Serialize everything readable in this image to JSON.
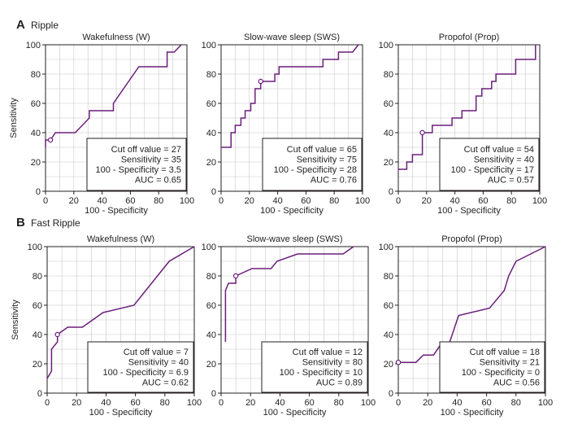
{
  "sections": [
    {
      "letter": "A",
      "title": "Ripple"
    },
    {
      "letter": "B",
      "title": "Fast Ripple"
    }
  ],
  "colors": {
    "curve": "#6b1f7c",
    "grid": "#c8c8c8",
    "axis": "#231f20",
    "text": "#231f20"
  },
  "chart_data": [
    {
      "type": "line",
      "section": "A",
      "title": "Wakefulness (W)",
      "xlabel": "100 - Specificity",
      "ylabel": "Sensitivity",
      "xlim": [
        0,
        100
      ],
      "ylim": [
        0,
        100
      ],
      "xticks": [
        0,
        20,
        40,
        60,
        80,
        100
      ],
      "yticks": [
        0,
        20,
        40,
        60,
        80,
        100
      ],
      "grid": true,
      "x": [
        0,
        0,
        3.5,
        3.5,
        7,
        7,
        21,
        21,
        31,
        31,
        48,
        48,
        66,
        66,
        86,
        86,
        91,
        91,
        96
      ],
      "y": [
        30,
        35,
        35,
        35,
        40,
        40,
        40,
        40,
        50,
        55,
        55,
        60,
        85,
        85,
        85,
        95,
        95,
        95,
        100
      ],
      "cutoff_point": {
        "x": 3.5,
        "y": 35
      },
      "annotation": [
        "Cut off value = 27",
        "Sensitivity = 35",
        "100 - Specificity = 3.5",
        "AUC = 0.65"
      ]
    },
    {
      "type": "line",
      "section": "A",
      "title": "Slow-wave sleep (SWS)",
      "xlabel": "100 - Specificity",
      "ylabel": "",
      "xlim": [
        0,
        100
      ],
      "ylim": [
        0,
        100
      ],
      "xticks": [
        0,
        20,
        40,
        60,
        80,
        100
      ],
      "yticks": [
        0,
        20,
        40,
        60,
        80,
        100
      ],
      "grid": true,
      "x": [
        0,
        7,
        7,
        10,
        10,
        14,
        14,
        17,
        17,
        21,
        21,
        24,
        24,
        28,
        28,
        38,
        38,
        41,
        41,
        45,
        45,
        72,
        72,
        83,
        83,
        93,
        93,
        97
      ],
      "y": [
        30,
        30,
        40,
        40,
        45,
        45,
        50,
        50,
        55,
        55,
        60,
        60,
        70,
        70,
        75,
        75,
        80,
        80,
        85,
        85,
        85,
        85,
        90,
        90,
        95,
        95,
        95,
        100
      ],
      "cutoff_point": {
        "x": 28,
        "y": 75
      },
      "annotation": [
        "Cut off value = 65",
        "Sensitivity = 75",
        "100 - Specificity = 28",
        "AUC = 0.76"
      ]
    },
    {
      "type": "line",
      "section": "A",
      "title": "Propofol (Prop)",
      "xlabel": "100 - Specificity",
      "ylabel": "",
      "xlim": [
        0,
        100
      ],
      "ylim": [
        0,
        100
      ],
      "xticks": [
        0,
        20,
        40,
        60,
        80,
        100
      ],
      "yticks": [
        0,
        20,
        40,
        60,
        80,
        100
      ],
      "grid": true,
      "x": [
        0,
        6,
        6,
        10,
        10,
        17,
        17,
        24,
        24,
        38,
        38,
        45,
        45,
        55,
        55,
        59,
        59,
        66,
        66,
        69,
        69,
        83,
        83,
        97,
        97
      ],
      "y": [
        15,
        15,
        20,
        20,
        25,
        25,
        40,
        40,
        45,
        45,
        50,
        50,
        55,
        55,
        65,
        65,
        70,
        70,
        75,
        75,
        80,
        80,
        90,
        90,
        100
      ],
      "cutoff_point": {
        "x": 17,
        "y": 40
      },
      "annotation": [
        "Cut off value = 54",
        "Sensitivity = 40",
        "100 - Specificity = 17",
        "AUC = 0.57"
      ]
    },
    {
      "type": "line",
      "section": "B",
      "title": "Wakefulness (W)",
      "xlabel": "100 - Specificity",
      "ylabel": "Sensitivity",
      "xlim": [
        0,
        100
      ],
      "ylim": [
        0,
        100
      ],
      "xticks": [
        0,
        20,
        40,
        60,
        80,
        100
      ],
      "yticks": [
        0,
        20,
        40,
        60,
        80,
        100
      ],
      "grid": true,
      "x": [
        0,
        3,
        3,
        7,
        7,
        14,
        24,
        38,
        59,
        83,
        100
      ],
      "y": [
        10,
        15,
        30,
        35,
        40,
        45,
        45,
        55,
        60,
        90,
        100
      ],
      "cutoff_point": {
        "x": 7,
        "y": 40
      },
      "annotation": [
        "Cut off value = 7",
        "Sensitivity = 40",
        "100 - Specificity = 6.9",
        "AUC = 0.62"
      ]
    },
    {
      "type": "line",
      "section": "B",
      "title": "Slow-wave sleep (SWS)",
      "xlabel": "100 - Specificity",
      "ylabel": "",
      "xlim": [
        0,
        100
      ],
      "ylim": [
        0,
        100
      ],
      "xticks": [
        0,
        20,
        40,
        60,
        80,
        100
      ],
      "yticks": [
        0,
        20,
        40,
        60,
        80,
        100
      ],
      "grid": true,
      "x": [
        3,
        3,
        5,
        10,
        10,
        21,
        34,
        38,
        52,
        83,
        90
      ],
      "y": [
        35,
        70,
        75,
        75,
        80,
        85,
        85,
        90,
        95,
        95,
        100
      ],
      "cutoff_point": {
        "x": 10,
        "y": 80
      },
      "annotation": [
        "Cut off value = 12",
        "Sensitivity = 80",
        "100 - Specificity = 10",
        "AUC = 0.89"
      ]
    },
    {
      "type": "line",
      "section": "B",
      "title": "Propofol (Prop)",
      "xlabel": "100 - Specificity",
      "ylabel": "",
      "xlim": [
        0,
        100
      ],
      "ylim": [
        0,
        100
      ],
      "xticks": [
        0,
        20,
        40,
        60,
        80,
        100
      ],
      "yticks": [
        0,
        20,
        40,
        60,
        80,
        100
      ],
      "grid": true,
      "x": [
        0,
        12,
        17,
        24,
        28,
        34,
        41,
        62,
        72,
        75,
        80,
        100
      ],
      "y": [
        21,
        21,
        26,
        26,
        32,
        32,
        53,
        58,
        70,
        80,
        90,
        100
      ],
      "cutoff_point": {
        "x": 0,
        "y": 21
      },
      "annotation": [
        "Cut off value = 18",
        "Sensitivity = 21",
        "100 - Specificity = 0",
        "AUC = 0.56"
      ]
    }
  ]
}
